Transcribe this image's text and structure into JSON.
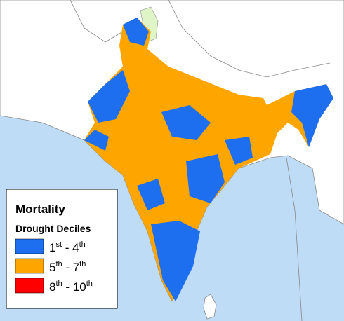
{
  "legend": {
    "title": "Mortality",
    "subtitle": "Drought Deciles",
    "items": [
      {
        "parts": [
          "1",
          "st",
          " - 4",
          "th"
        ],
        "color": "#1e6ef0"
      },
      {
        "parts": [
          "5",
          "th",
          " - 7",
          "th"
        ],
        "color": "#ffa500"
      },
      {
        "parts": [
          "8",
          "th",
          " - 10",
          "th"
        ],
        "color": "#ff0000"
      }
    ]
  }
}
